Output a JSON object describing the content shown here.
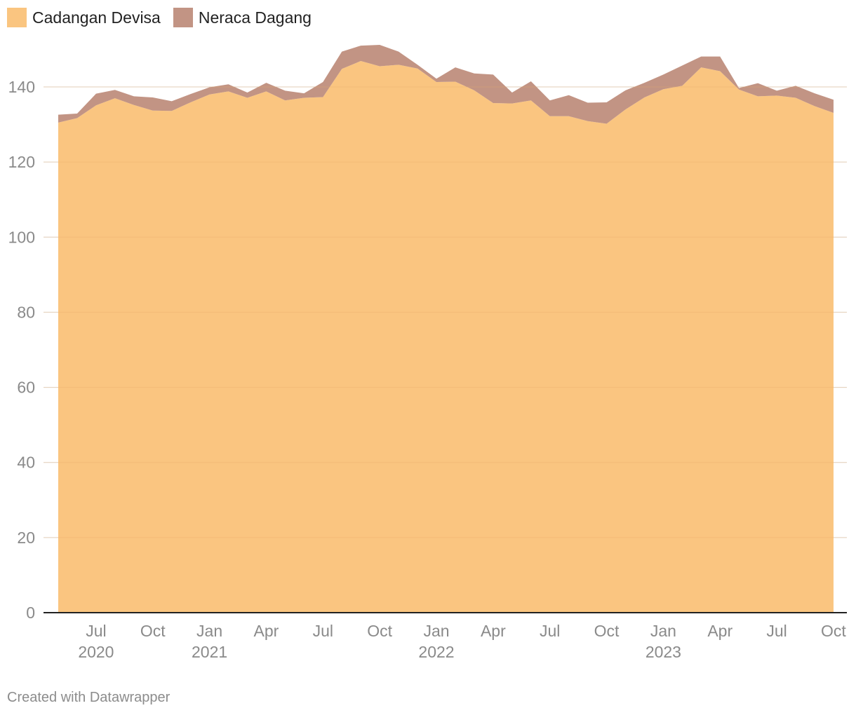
{
  "chart_data": {
    "type": "area",
    "stacked": true,
    "x": [
      "2020-05",
      "2020-06",
      "2020-07",
      "2020-08",
      "2020-09",
      "2020-10",
      "2020-11",
      "2020-12",
      "2021-01",
      "2021-02",
      "2021-03",
      "2021-04",
      "2021-05",
      "2021-06",
      "2021-07",
      "2021-08",
      "2021-09",
      "2021-10",
      "2021-11",
      "2021-12",
      "2022-01",
      "2022-02",
      "2022-03",
      "2022-04",
      "2022-05",
      "2022-06",
      "2022-07",
      "2022-08",
      "2022-09",
      "2022-10",
      "2022-11",
      "2022-12",
      "2023-01",
      "2023-02",
      "2023-03",
      "2023-04",
      "2023-05",
      "2023-06",
      "2023-07",
      "2023-08",
      "2023-09",
      "2023-10"
    ],
    "series": [
      {
        "name": "Cadangan Devisa",
        "color": "#fac580",
        "values": [
          130.5,
          131.7,
          135.1,
          137.0,
          135.2,
          133.7,
          133.6,
          135.9,
          138.0,
          138.8,
          137.1,
          138.8,
          136.4,
          137.1,
          137.3,
          144.8,
          146.9,
          145.5,
          145.9,
          144.9,
          141.3,
          141.4,
          139.1,
          135.7,
          135.6,
          136.4,
          132.2,
          132.2,
          130.9,
          130.2,
          134.0,
          137.2,
          139.4,
          140.3,
          145.2,
          144.2,
          139.3,
          137.5,
          137.7,
          137.1,
          134.9,
          133.1
        ]
      },
      {
        "name": "Neraca Dagang",
        "color": "#c29484",
        "values": [
          2.1,
          1.2,
          3.1,
          2.2,
          2.3,
          3.5,
          2.6,
          2.2,
          1.9,
          1.9,
          1.4,
          2.3,
          2.6,
          1.2,
          4.0,
          4.6,
          4.1,
          5.7,
          3.5,
          1.0,
          0.9,
          3.8,
          4.5,
          7.6,
          2.9,
          5.1,
          4.2,
          5.6,
          4.9,
          5.7,
          5.1,
          3.9,
          3.9,
          5.4,
          2.9,
          3.9,
          0.4,
          3.5,
          1.3,
          3.2,
          3.4,
          3.5
        ]
      }
    ],
    "ylim": [
      0,
      150
    ],
    "yticks": [
      "0",
      "20",
      "40",
      "60",
      "80",
      "100",
      "120",
      "140"
    ],
    "xticks": [
      {
        "date": "2020-07",
        "month": "Jul",
        "year": "2020"
      },
      {
        "date": "2020-10",
        "month": "Oct",
        "year": ""
      },
      {
        "date": "2021-01",
        "month": "Jan",
        "year": "2021"
      },
      {
        "date": "2021-04",
        "month": "Apr",
        "year": ""
      },
      {
        "date": "2021-07",
        "month": "Jul",
        "year": ""
      },
      {
        "date": "2021-10",
        "month": "Oct",
        "year": ""
      },
      {
        "date": "2022-01",
        "month": "Jan",
        "year": "2022"
      },
      {
        "date": "2022-04",
        "month": "Apr",
        "year": ""
      },
      {
        "date": "2022-07",
        "month": "Jul",
        "year": ""
      },
      {
        "date": "2022-10",
        "month": "Oct",
        "year": ""
      },
      {
        "date": "2023-01",
        "month": "Jan",
        "year": "2023"
      },
      {
        "date": "2023-04",
        "month": "Apr",
        "year": ""
      },
      {
        "date": "2023-07",
        "month": "Jul",
        "year": ""
      },
      {
        "date": "2023-10",
        "month": "Oct",
        "year": ""
      }
    ],
    "grid": true,
    "legend_position": "top-left"
  },
  "legend": [
    {
      "label": "Cadangan Devisa",
      "color": "#fac580"
    },
    {
      "label": "Neraca Dagang",
      "color": "#c29484"
    }
  ],
  "footer": {
    "credit": "Created with Datawrapper"
  }
}
